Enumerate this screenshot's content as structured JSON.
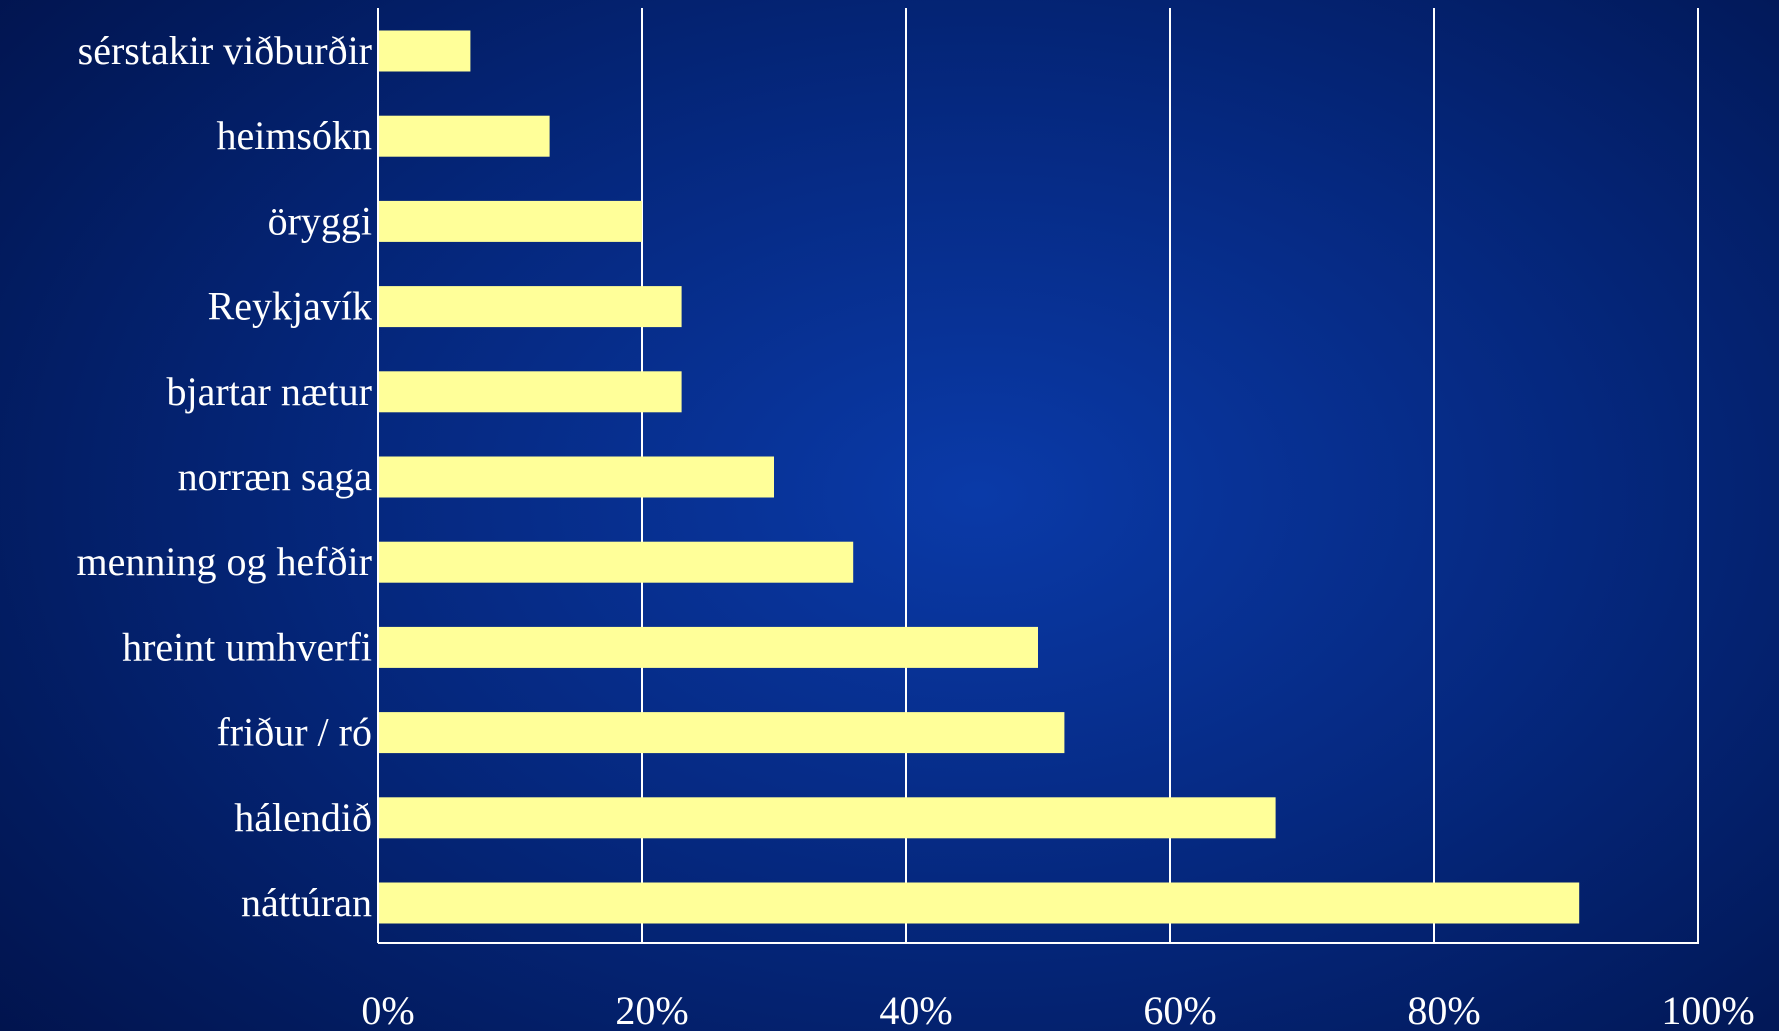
{
  "chart_data": {
    "type": "bar",
    "orientation": "horizontal",
    "categories": [
      "sérstakir viðburðir",
      "heimsókn",
      "öryggi",
      "Reykjavík",
      "bjartar nætur",
      "norræn saga",
      "menning og hefðir",
      "hreint umhverfi",
      "friður / ró",
      "hálendið",
      "náttúran"
    ],
    "values": [
      7,
      13,
      20,
      23,
      23,
      30,
      36,
      50,
      52,
      68,
      91
    ],
    "xlim": [
      0,
      100
    ],
    "x_ticks": [
      "0%",
      "20%",
      "40%",
      "60%",
      "80%",
      "100%"
    ],
    "grid": true,
    "legend": "none",
    "title": "",
    "xlabel": "",
    "ylabel": "",
    "colors": {
      "bar": "#ffff99",
      "grid": "#ffffff",
      "axis": "#ffffff",
      "text": "#ffffff"
    }
  }
}
